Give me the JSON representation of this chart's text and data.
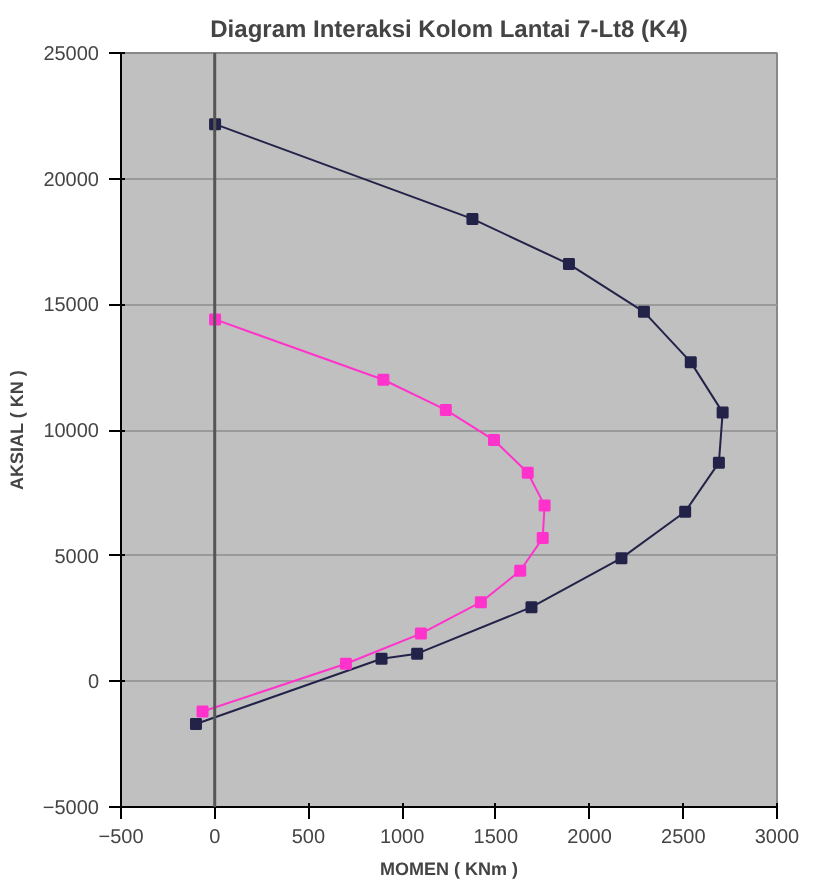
{
  "chart_data": {
    "type": "line",
    "title": "Diagram Interaksi Kolom Lantai 7-Lt8 (K4)",
    "xlabel": "MOMEN ( KNm )",
    "ylabel": "AKSIAL ( KN )",
    "xlim": [
      -500,
      3000
    ],
    "xticks": [
      -500,
      0,
      500,
      1000,
      1500,
      2000,
      2500,
      3000
    ],
    "ylim": [
      -5000,
      25000
    ],
    "yticks": [
      -5000,
      0,
      5000,
      10000,
      15000,
      20000,
      25000
    ],
    "grid": "y",
    "ref_lines": [
      {
        "axis": "x",
        "value": 0,
        "color": "#555555"
      }
    ],
    "marker": "square",
    "line_style": "solid",
    "series": [
      {
        "color": "#23234a",
        "x": [
          2,
          1375,
          1890,
          2290,
          2540,
          2710,
          2690,
          2510,
          2170,
          1690,
          1080,
          890,
          -100
        ],
        "values": [
          22170,
          18400,
          16600,
          14700,
          12700,
          10700,
          8700,
          6750,
          4900,
          2950,
          1100,
          900,
          -1700
        ]
      },
      {
        "color": "#ff33cc",
        "x": [
          2,
          900,
          1233,
          1490,
          1670,
          1760,
          1750,
          1630,
          1420,
          1100,
          700,
          -65
        ],
        "values": [
          14400,
          12000,
          10800,
          9600,
          8300,
          7000,
          5700,
          4400,
          3150,
          1900,
          700,
          -1200
        ]
      }
    ]
  }
}
